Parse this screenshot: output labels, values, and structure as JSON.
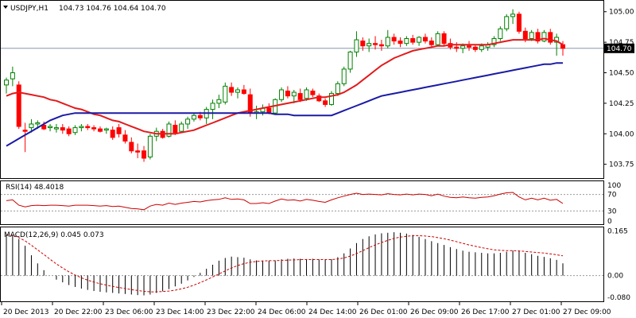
{
  "symbol_header": {
    "symbol": "USDJPY,H1",
    "ohlc": "104.73 104.76 104.64 104.70",
    "dropdown_icon": "triangle-down-icon"
  },
  "colors": {
    "background": "#ffffff",
    "border": "#000000",
    "candle_up": "#008000",
    "candle_down": "#ff0000",
    "ma_fast": "#e31a1c",
    "ma_slow": "#1a1aa6",
    "rsi_line": "#cc0000",
    "macd_signal": "#cc0000",
    "macd_hist": "#000000",
    "current_price_line": "#8899aa",
    "level_lines": "#999999",
    "price_tag_bg": "#000000",
    "price_tag_text": "#ffffff"
  },
  "chart_data": [
    {
      "type": "candlestick",
      "title": "USDJPY,H1",
      "subtitle": "104.73 104.76 104.64 104.70",
      "ylim": [
        103.65,
        105.07
      ],
      "y_ticks": [
        103.75,
        104.0,
        104.25,
        104.5,
        104.75,
        105.0
      ],
      "y_tick_labels": [
        "103.75",
        "104.00",
        "104.25",
        "104.50",
        "104.75",
        "105.00"
      ],
      "current_price": 104.7,
      "current_price_label": "104.70",
      "grid": false,
      "x_labels": [
        "20 Dec 2013",
        "20 Dec 22:00",
        "23 Dec 06:00",
        "23 Dec 14:00",
        "23 Dec 22:00",
        "24 Dec 06:00",
        "24 Dec 14:00",
        "26 Dec 01:00",
        "26 Dec 09:00",
        "26 Dec 17:00",
        "27 Dec 01:00",
        "27 Dec 09:00"
      ],
      "candles": [
        [
          104.4,
          104.46,
          104.33,
          104.44
        ],
        [
          104.45,
          104.55,
          104.39,
          104.5
        ],
        [
          104.4,
          104.43,
          104.04,
          104.06
        ],
        [
          104.03,
          104.09,
          103.85,
          104.02
        ],
        [
          104.05,
          104.12,
          104.01,
          104.08
        ],
        [
          104.08,
          104.11,
          104.04,
          104.09
        ],
        [
          104.07,
          104.1,
          104.03,
          104.04
        ],
        [
          104.05,
          104.08,
          104.02,
          104.06
        ],
        [
          104.04,
          104.08,
          104.01,
          104.05
        ],
        [
          104.05,
          104.08,
          104.0,
          104.03
        ],
        [
          104.04,
          104.06,
          103.98,
          104.0
        ],
        [
          104.01,
          104.07,
          103.99,
          104.05
        ],
        [
          104.05,
          104.08,
          104.02,
          104.06
        ],
        [
          104.06,
          104.08,
          104.03,
          104.05
        ],
        [
          104.05,
          104.07,
          104.02,
          104.04
        ],
        [
          104.04,
          104.06,
          104.01,
          104.02
        ],
        [
          104.03,
          104.05,
          104.0,
          104.04
        ],
        [
          104.03,
          104.06,
          103.95,
          103.97
        ],
        [
          104.05,
          104.08,
          103.97,
          104.0
        ],
        [
          103.99,
          104.03,
          103.92,
          103.94
        ],
        [
          103.93,
          103.97,
          103.84,
          103.86
        ],
        [
          103.86,
          103.92,
          103.8,
          103.85
        ],
        [
          103.86,
          103.9,
          103.77,
          103.8
        ],
        [
          103.81,
          104.0,
          103.79,
          103.98
        ],
        [
          103.98,
          104.05,
          103.94,
          104.02
        ],
        [
          104.02,
          104.04,
          103.96,
          103.97
        ],
        [
          103.98,
          104.1,
          103.97,
          104.08
        ],
        [
          104.07,
          104.11,
          103.99,
          104.01
        ],
        [
          104.02,
          104.1,
          104.01,
          104.08
        ],
        [
          104.08,
          104.14,
          104.04,
          104.12
        ],
        [
          104.12,
          104.17,
          104.1,
          104.15
        ],
        [
          104.15,
          104.18,
          104.11,
          104.13
        ],
        [
          104.13,
          104.22,
          104.08,
          104.2
        ],
        [
          104.2,
          104.28,
          104.12,
          104.25
        ],
        [
          104.25,
          104.32,
          104.21,
          104.28
        ],
        [
          104.26,
          104.42,
          104.24,
          104.39
        ],
        [
          104.38,
          104.42,
          104.31,
          104.34
        ],
        [
          104.34,
          104.38,
          104.29,
          104.36
        ],
        [
          104.36,
          104.4,
          104.32,
          104.33
        ],
        [
          104.32,
          104.37,
          104.14,
          104.17
        ],
        [
          104.17,
          104.23,
          104.12,
          104.18
        ],
        [
          104.18,
          104.24,
          104.15,
          104.21
        ],
        [
          104.21,
          104.25,
          104.16,
          104.17
        ],
        [
          104.17,
          104.29,
          104.16,
          104.28
        ],
        [
          104.28,
          104.38,
          104.26,
          104.36
        ],
        [
          104.35,
          104.39,
          104.29,
          104.31
        ],
        [
          104.31,
          104.36,
          104.25,
          104.34
        ],
        [
          104.33,
          104.37,
          104.26,
          104.28
        ],
        [
          104.29,
          104.38,
          104.27,
          104.36
        ],
        [
          104.35,
          104.37,
          104.3,
          104.32
        ],
        [
          104.31,
          104.33,
          104.26,
          104.27
        ],
        [
          104.27,
          104.29,
          104.22,
          104.24
        ],
        [
          104.24,
          104.35,
          104.23,
          104.33
        ],
        [
          104.33,
          104.43,
          104.31,
          104.41
        ],
        [
          104.41,
          104.55,
          104.39,
          104.53
        ],
        [
          104.53,
          104.68,
          104.5,
          104.67
        ],
        [
          104.67,
          104.84,
          104.63,
          104.77
        ],
        [
          104.76,
          104.79,
          104.68,
          104.72
        ],
        [
          104.72,
          104.78,
          104.67,
          104.74
        ],
        [
          104.74,
          104.8,
          104.69,
          104.73
        ],
        [
          104.73,
          104.77,
          104.68,
          104.72
        ],
        [
          104.72,
          104.85,
          104.7,
          104.79
        ],
        [
          104.79,
          104.82,
          104.73,
          104.76
        ],
        [
          104.76,
          104.79,
          104.71,
          104.74
        ],
        [
          104.74,
          104.8,
          104.72,
          104.78
        ],
        [
          104.78,
          104.81,
          104.73,
          104.75
        ],
        [
          104.75,
          104.8,
          104.72,
          104.79
        ],
        [
          104.79,
          104.82,
          104.74,
          104.76
        ],
        [
          104.76,
          104.79,
          104.71,
          104.73
        ],
        [
          104.73,
          104.84,
          104.72,
          104.82
        ],
        [
          104.82,
          104.84,
          104.72,
          104.74
        ],
        [
          104.74,
          104.78,
          104.69,
          104.71
        ],
        [
          104.71,
          104.75,
          104.67,
          104.7
        ],
        [
          104.7,
          104.74,
          104.66,
          104.72
        ],
        [
          104.72,
          104.76,
          104.68,
          104.71
        ],
        [
          104.71,
          104.73,
          104.67,
          104.69
        ],
        [
          104.69,
          104.74,
          104.67,
          104.72
        ],
        [
          104.71,
          104.75,
          104.68,
          104.73
        ],
        [
          104.73,
          104.8,
          104.71,
          104.78
        ],
        [
          104.78,
          104.88,
          104.76,
          104.86
        ],
        [
          104.86,
          104.98,
          104.84,
          104.96
        ],
        [
          104.96,
          105.02,
          104.9,
          104.98
        ],
        [
          104.98,
          105.0,
          104.82,
          104.84
        ],
        [
          104.84,
          104.87,
          104.75,
          104.78
        ],
        [
          104.78,
          104.85,
          104.76,
          104.83
        ],
        [
          104.83,
          104.86,
          104.74,
          104.76
        ],
        [
          104.76,
          104.85,
          104.75,
          104.83
        ],
        [
          104.83,
          104.86,
          104.73,
          104.75
        ],
        [
          104.75,
          104.82,
          104.64,
          104.79
        ],
        [
          104.73,
          104.76,
          104.64,
          104.7
        ]
      ],
      "series": [
        {
          "name": "",
          "kind": "moving_average_fast",
          "values": [
            104.31,
            104.33,
            104.34,
            104.33,
            104.32,
            104.31,
            104.3,
            104.28,
            104.27,
            104.25,
            104.23,
            104.21,
            104.2,
            104.18,
            104.16,
            104.15,
            104.13,
            104.11,
            104.1,
            104.08,
            104.06,
            104.04,
            104.02,
            104.01,
            104.0,
            104.0,
            104.0,
            104.0,
            104.01,
            104.02,
            104.03,
            104.05,
            104.07,
            104.09,
            104.11,
            104.13,
            104.15,
            104.17,
            104.18,
            104.19,
            104.2,
            104.21,
            104.22,
            104.23,
            104.24,
            104.25,
            104.26,
            104.27,
            104.28,
            104.29,
            104.3,
            104.3,
            104.31,
            104.32,
            104.34,
            104.37,
            104.4,
            104.44,
            104.48,
            104.52,
            104.56,
            104.59,
            104.62,
            104.64,
            104.66,
            104.68,
            104.69,
            104.7,
            104.71,
            104.72,
            104.72,
            104.73,
            104.73,
            104.73,
            104.73,
            104.73,
            104.73,
            104.73,
            104.74,
            104.75,
            104.76,
            104.77,
            104.77,
            104.77,
            104.77,
            104.77,
            104.78,
            104.77,
            104.76,
            104.73
          ]
        },
        {
          "name": "",
          "kind": "moving_average_slow",
          "values": [
            103.9,
            103.93,
            103.96,
            103.99,
            104.02,
            104.05,
            104.08,
            104.11,
            104.13,
            104.15,
            104.16,
            104.17,
            104.17,
            104.17,
            104.17,
            104.17,
            104.17,
            104.17,
            104.17,
            104.17,
            104.17,
            104.17,
            104.17,
            104.17,
            104.17,
            104.17,
            104.17,
            104.17,
            104.17,
            104.17,
            104.17,
            104.17,
            104.17,
            104.17,
            104.17,
            104.17,
            104.17,
            104.17,
            104.17,
            104.17,
            104.17,
            104.17,
            104.17,
            104.16,
            104.16,
            104.16,
            104.15,
            104.15,
            104.15,
            104.15,
            104.15,
            104.15,
            104.15,
            104.17,
            104.19,
            104.21,
            104.23,
            104.25,
            104.27,
            104.29,
            104.31,
            104.32,
            104.33,
            104.34,
            104.35,
            104.36,
            104.37,
            104.38,
            104.39,
            104.4,
            104.41,
            104.42,
            104.43,
            104.44,
            104.45,
            104.46,
            104.47,
            104.48,
            104.49,
            104.5,
            104.51,
            104.52,
            104.53,
            104.54,
            104.55,
            104.56,
            104.57,
            104.57,
            104.58,
            104.58
          ]
        }
      ]
    },
    {
      "type": "line",
      "title": "RSI(14) 48.4018",
      "ylim": [
        0,
        100
      ],
      "y_ticks": [
        70,
        30
      ],
      "y_tick_labels": [
        "100",
        "70",
        "30",
        "0"
      ],
      "levels": [
        70,
        30
      ],
      "grid": false,
      "series": [
        {
          "name": "",
          "values": [
            55,
            57,
            44,
            40,
            43,
            44,
            43,
            44,
            44,
            43,
            42,
            44,
            44,
            44,
            43,
            42,
            43,
            41,
            42,
            39,
            36,
            35,
            33,
            42,
            46,
            44,
            49,
            46,
            49,
            51,
            53,
            52,
            55,
            57,
            58,
            62,
            58,
            59,
            57,
            48,
            48,
            50,
            48,
            54,
            59,
            56,
            57,
            54,
            58,
            56,
            53,
            51,
            57,
            62,
            66,
            70,
            73,
            70,
            71,
            70,
            69,
            72,
            70,
            69,
            71,
            69,
            71,
            70,
            67,
            71,
            66,
            63,
            62,
            64,
            62,
            61,
            63,
            64,
            67,
            71,
            74,
            75,
            64,
            57,
            61,
            57,
            61,
            56,
            58,
            48
          ]
        }
      ]
    },
    {
      "type": "bar",
      "title": "MACD(12,26,9) 0.045 0.073",
      "ylim": [
        -0.095,
        0.175
      ],
      "y_ticks": [
        0.165,
        0.0,
        -0.08
      ],
      "y_tick_labels": [
        "0.165",
        "0.00",
        "-0.080"
      ],
      "grid": false,
      "series": [
        {
          "name": "",
          "kind": "histogram",
          "values": [
            0.15,
            0.15,
            0.135,
            0.11,
            0.075,
            0.045,
            0.02,
            0.0,
            -0.015,
            -0.025,
            -0.035,
            -0.042,
            -0.048,
            -0.053,
            -0.057,
            -0.06,
            -0.062,
            -0.064,
            -0.066,
            -0.068,
            -0.07,
            -0.072,
            -0.073,
            -0.07,
            -0.064,
            -0.058,
            -0.05,
            -0.04,
            -0.03,
            -0.018,
            -0.005,
            0.01,
            0.025,
            0.04,
            0.055,
            0.065,
            0.07,
            0.068,
            0.066,
            0.06,
            0.056,
            0.055,
            0.055,
            0.056,
            0.06,
            0.062,
            0.063,
            0.062,
            0.061,
            0.062,
            0.06,
            0.058,
            0.06,
            0.068,
            0.082,
            0.1,
            0.12,
            0.135,
            0.145,
            0.152,
            0.156,
            0.158,
            0.16,
            0.158,
            0.155,
            0.15,
            0.143,
            0.135,
            0.127,
            0.12,
            0.113,
            0.105,
            0.098,
            0.092,
            0.088,
            0.086,
            0.084,
            0.082,
            0.082,
            0.084,
            0.088,
            0.092,
            0.09,
            0.084,
            0.079,
            0.073,
            0.069,
            0.064,
            0.058,
            0.045
          ]
        },
        {
          "name": "",
          "kind": "signal",
          "values": [
            0.15,
            0.148,
            0.14,
            0.128,
            0.112,
            0.095,
            0.078,
            0.06,
            0.043,
            0.028,
            0.014,
            0.002,
            -0.008,
            -0.017,
            -0.024,
            -0.03,
            -0.035,
            -0.04,
            -0.044,
            -0.048,
            -0.052,
            -0.055,
            -0.058,
            -0.06,
            -0.06,
            -0.059,
            -0.057,
            -0.054,
            -0.049,
            -0.043,
            -0.035,
            -0.026,
            -0.016,
            -0.005,
            0.006,
            0.017,
            0.028,
            0.037,
            0.044,
            0.049,
            0.052,
            0.054,
            0.055,
            0.055,
            0.056,
            0.057,
            0.058,
            0.059,
            0.059,
            0.059,
            0.059,
            0.059,
            0.059,
            0.061,
            0.065,
            0.072,
            0.081,
            0.092,
            0.103,
            0.113,
            0.122,
            0.13,
            0.137,
            0.142,
            0.145,
            0.147,
            0.147,
            0.146,
            0.144,
            0.14,
            0.136,
            0.131,
            0.125,
            0.119,
            0.113,
            0.108,
            0.103,
            0.099,
            0.095,
            0.093,
            0.092,
            0.092,
            0.091,
            0.089,
            0.087,
            0.085,
            0.083,
            0.08,
            0.077,
            0.073
          ]
        }
      ]
    }
  ]
}
